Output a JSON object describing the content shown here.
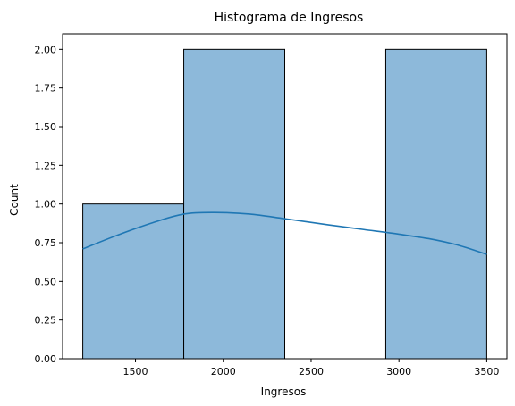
{
  "chart_data": {
    "type": "bar",
    "title": "Histograma de Ingresos",
    "xlabel": "Ingresos",
    "ylabel": "Count",
    "xlim": [
      1085,
      3615
    ],
    "ylim": [
      0,
      2.1
    ],
    "xticks": [
      1500,
      2000,
      2500,
      3000,
      3500
    ],
    "yticks": [
      0.0,
      0.25,
      0.5,
      0.75,
      1.0,
      1.25,
      1.5,
      1.75,
      2.0
    ],
    "ytick_labels": [
      "0.00",
      "0.25",
      "0.50",
      "0.75",
      "1.00",
      "1.25",
      "1.50",
      "1.75",
      "2.00"
    ],
    "bins": [
      {
        "start": 1200,
        "end": 1775,
        "count": 1
      },
      {
        "start": 1775,
        "end": 2350,
        "count": 2
      },
      {
        "start": 2350,
        "end": 2925,
        "count": 0
      },
      {
        "start": 2925,
        "end": 3500,
        "count": 2
      }
    ],
    "kde": {
      "x": [
        1200,
        1400,
        1600,
        1775,
        1950,
        2150,
        2350,
        2600,
        2800,
        3000,
        3200,
        3350,
        3500
      ],
      "y": [
        0.71,
        0.8,
        0.88,
        0.935,
        0.945,
        0.935,
        0.905,
        0.865,
        0.835,
        0.805,
        0.77,
        0.73,
        0.675
      ]
    },
    "bar_color": "#8db9da",
    "bar_edge": "#000000",
    "kde_color": "#1f77b4",
    "grid": false
  }
}
